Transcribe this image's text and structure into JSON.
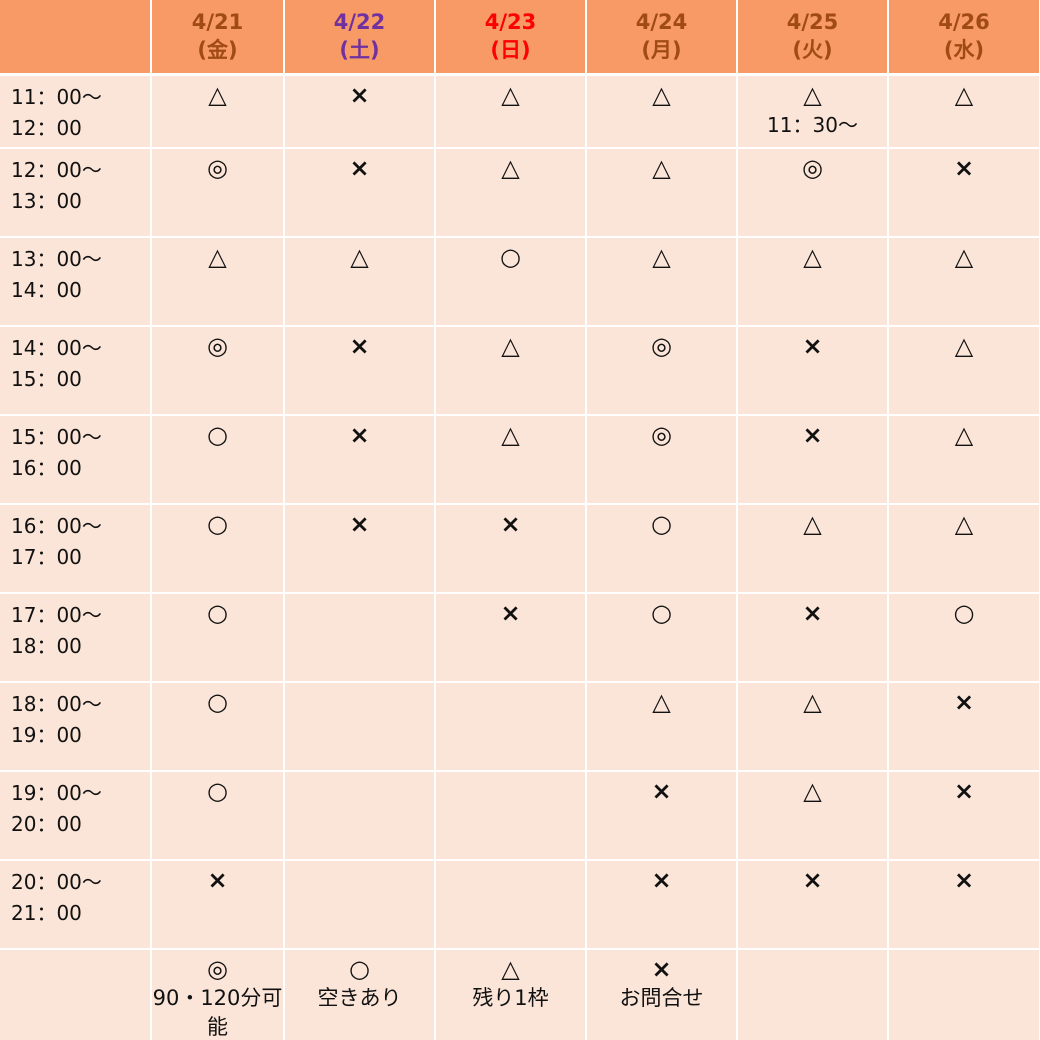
{
  "header": {
    "corner": "",
    "days": [
      {
        "date": "4/21",
        "dow": "(金)",
        "color": "#a04a15"
      },
      {
        "date": "4/22",
        "dow": "(土)",
        "color": "#7030a0"
      },
      {
        "date": "4/23",
        "dow": "(日)",
        "color": "#ff0000"
      },
      {
        "date": "4/24",
        "dow": "(月)",
        "color": "#a04a15"
      },
      {
        "date": "4/25",
        "dow": "(火)",
        "color": "#a04a15"
      },
      {
        "date": "4/26",
        "dow": "(水)",
        "color": "#a04a15"
      }
    ]
  },
  "rows": [
    {
      "start": "11：00〜",
      "end": "12：00",
      "cells": [
        {
          "s": "△"
        },
        {
          "s": "×"
        },
        {
          "s": "△"
        },
        {
          "s": "△"
        },
        {
          "s": "△",
          "note": "11：30〜"
        },
        {
          "s": "△"
        }
      ]
    },
    {
      "start": "12：00〜",
      "end": "13：00",
      "cells": [
        {
          "s": "◎"
        },
        {
          "s": "×"
        },
        {
          "s": "△"
        },
        {
          "s": "△"
        },
        {
          "s": "◎"
        },
        {
          "s": "×"
        }
      ]
    },
    {
      "start": "13：00〜",
      "end": "14：00",
      "cells": [
        {
          "s": "△"
        },
        {
          "s": "△"
        },
        {
          "s": "○"
        },
        {
          "s": "△"
        },
        {
          "s": "△"
        },
        {
          "s": "△"
        }
      ]
    },
    {
      "start": "14：00〜",
      "end": "15：00",
      "cells": [
        {
          "s": "◎"
        },
        {
          "s": "×"
        },
        {
          "s": "△"
        },
        {
          "s": "◎"
        },
        {
          "s": "×"
        },
        {
          "s": "△"
        }
      ]
    },
    {
      "start": "15：00〜",
      "end": "16：00",
      "cells": [
        {
          "s": "○"
        },
        {
          "s": "×"
        },
        {
          "s": "△"
        },
        {
          "s": "◎"
        },
        {
          "s": "×"
        },
        {
          "s": "△"
        }
      ]
    },
    {
      "start": "16：00〜",
      "end": "17：00",
      "cells": [
        {
          "s": "○"
        },
        {
          "s": "×"
        },
        {
          "s": "×"
        },
        {
          "s": "○"
        },
        {
          "s": "△"
        },
        {
          "s": "△"
        }
      ]
    },
    {
      "start": "17：00〜",
      "end": "18：00",
      "cells": [
        {
          "s": "○"
        },
        {
          "s": ""
        },
        {
          "s": "×"
        },
        {
          "s": "○"
        },
        {
          "s": "×"
        },
        {
          "s": "○"
        }
      ]
    },
    {
      "start": "18：00〜",
      "end": "19：00",
      "cells": [
        {
          "s": "○"
        },
        {
          "s": ""
        },
        {
          "s": ""
        },
        {
          "s": "△"
        },
        {
          "s": "△"
        },
        {
          "s": "×"
        }
      ]
    },
    {
      "start": "19：00〜",
      "end": "20：00",
      "cells": [
        {
          "s": "○"
        },
        {
          "s": ""
        },
        {
          "s": ""
        },
        {
          "s": "×"
        },
        {
          "s": "△"
        },
        {
          "s": "×"
        }
      ]
    },
    {
      "start": "20：00〜",
      "end": "21：00",
      "cells": [
        {
          "s": "×"
        },
        {
          "s": ""
        },
        {
          "s": ""
        },
        {
          "s": "×"
        },
        {
          "s": "×"
        },
        {
          "s": "×"
        }
      ]
    }
  ],
  "legend": [
    {
      "s": "◎",
      "label": "90・120分可能"
    },
    {
      "s": "○",
      "label": "空きあり"
    },
    {
      "s": "△",
      "label": "残り1枠"
    },
    {
      "s": "×",
      "label": "お問合せ"
    },
    {
      "s": "",
      "label": ""
    },
    {
      "s": "",
      "label": ""
    }
  ]
}
